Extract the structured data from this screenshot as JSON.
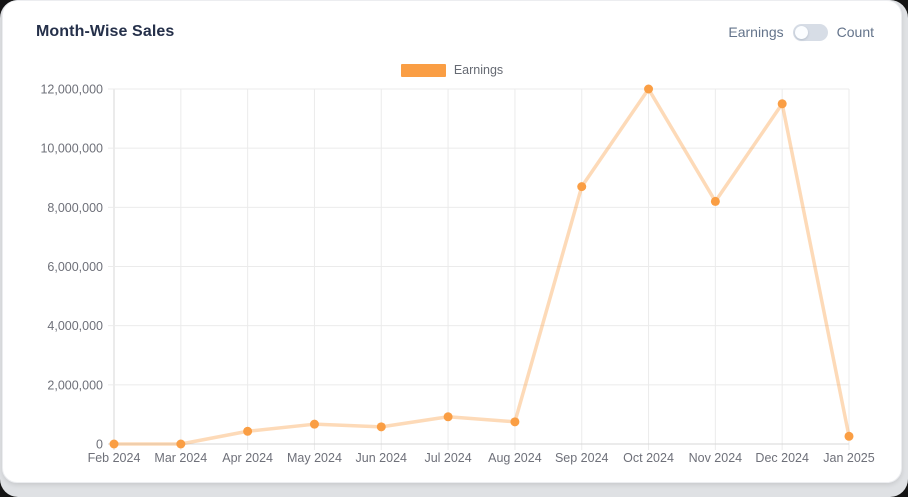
{
  "card": {
    "title": "Month-Wise Sales"
  },
  "toggle": {
    "left_label": "Earnings",
    "right_label": "Count",
    "state": "left",
    "selected_metric": "Earnings"
  },
  "legend": {
    "label": "Earnings"
  },
  "colors": {
    "accent_orange": "#fa9e44",
    "line_orange_light": "rgba(250,158,68,0.38)",
    "grid": "#ebebeb",
    "axis": "#d7d7d7",
    "title_text": "#25304a",
    "muted_text": "#6e7079",
    "toggle_pill": "#d7dde6"
  },
  "chart_data": {
    "type": "line",
    "title": "Month-Wise Sales",
    "categories": [
      "Feb 2024",
      "Mar 2024",
      "Apr 2024",
      "May 2024",
      "Jun 2024",
      "Jul 2024",
      "Aug 2024",
      "Sep 2024",
      "Oct 2024",
      "Nov 2024",
      "Dec 2024",
      "Jan 2025"
    ],
    "series": [
      {
        "name": "Earnings",
        "values": [
          0,
          0,
          430000,
          670000,
          580000,
          920000,
          750000,
          8700000,
          12000000,
          8200000,
          11500000,
          260000
        ],
        "point_color": "#fa9e44",
        "line_color": "rgba(250,158,68,0.38)"
      }
    ],
    "xlabel": "",
    "ylabel": "",
    "ylim": [
      0,
      12000000
    ],
    "y_ticks": {
      "values": [
        0,
        2000000,
        4000000,
        6000000,
        8000000,
        10000000,
        12000000
      ],
      "labels": [
        "0",
        "2,000,000",
        "4,000,000",
        "6,000,000",
        "8,000,000",
        "10,000,000",
        "12,000,000"
      ]
    },
    "grid": true,
    "legend_position": "top-center"
  }
}
